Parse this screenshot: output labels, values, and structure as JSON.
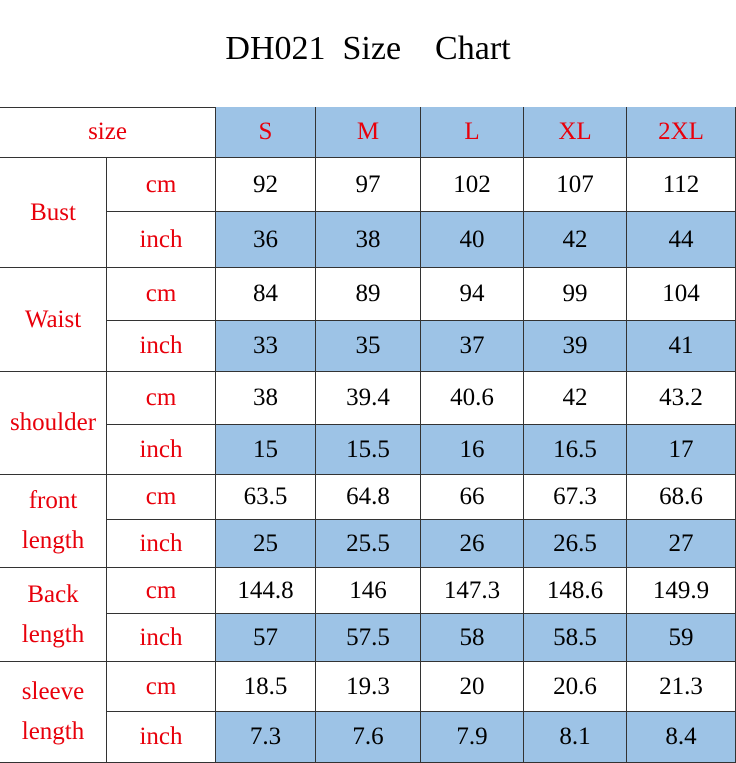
{
  "title": "DH021  Size    Chart",
  "table": {
    "header": [
      "size",
      "S",
      "M",
      "L",
      "XL",
      "2XL"
    ],
    "groups": [
      {
        "name": [
          "Bust"
        ],
        "rows": [
          {
            "unit": "cm",
            "values": [
              92,
              97,
              102,
              107,
              112
            ]
          },
          {
            "unit": "inch",
            "values": [
              36,
              38,
              40,
              42,
              44
            ]
          }
        ]
      },
      {
        "name": [
          "Waist"
        ],
        "rows": [
          {
            "unit": "cm",
            "values": [
              84,
              89,
              94,
              99,
              104
            ]
          },
          {
            "unit": "inch",
            "values": [
              33,
              35,
              37,
              39,
              41
            ]
          }
        ]
      },
      {
        "name": [
          "shoulder"
        ],
        "rows": [
          {
            "unit": "cm",
            "values": [
              38,
              39.4,
              40.6,
              42,
              43.2
            ]
          },
          {
            "unit": "inch",
            "values": [
              15,
              15.5,
              16,
              16.5,
              17
            ]
          }
        ]
      },
      {
        "name": [
          "front",
          "length"
        ],
        "rows": [
          {
            "unit": "cm",
            "values": [
              63.5,
              64.8,
              66,
              67.3,
              68.6
            ]
          },
          {
            "unit": "inch",
            "values": [
              25,
              25.5,
              26,
              26.5,
              27
            ]
          }
        ]
      },
      {
        "name": [
          "Back",
          "length"
        ],
        "rows": [
          {
            "unit": "cm",
            "values": [
              144.8,
              146,
              147.3,
              148.6,
              149.9
            ]
          },
          {
            "unit": "inch",
            "values": [
              57,
              57.5,
              58,
              58.5,
              59
            ]
          }
        ]
      },
      {
        "name": [
          "sleeve",
          "length"
        ],
        "rows": [
          {
            "unit": "cm",
            "values": [
              18.5,
              19.3,
              20,
              20.6,
              21.3
            ]
          },
          {
            "unit": "inch",
            "values": [
              7.3,
              7.6,
              7.9,
              8.1,
              8.4
            ]
          }
        ]
      }
    ]
  }
}
